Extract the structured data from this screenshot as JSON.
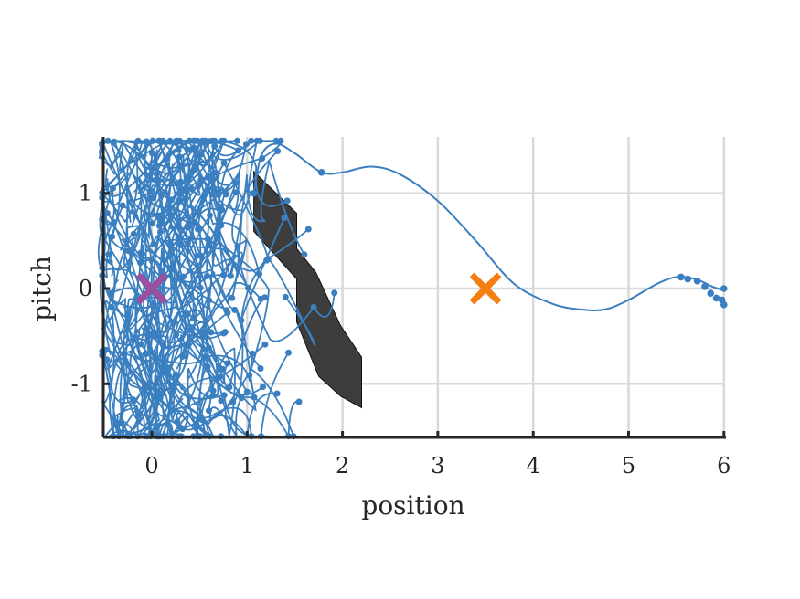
{
  "chart_data": {
    "type": "line",
    "title": "",
    "xlabel": "position",
    "ylabel": "pitch",
    "xlim": [
      -0.52,
      6.02
    ],
    "ylim": [
      -1.58,
      1.58
    ],
    "x_ticks": [
      0,
      1,
      2,
      3,
      4,
      5,
      6
    ],
    "x_tick_labels": [
      "0",
      "1",
      "2",
      "3",
      "4",
      "5",
      "6"
    ],
    "y_ticks": [
      -1,
      0,
      1
    ],
    "y_tick_labels": [
      "-1",
      "0",
      "1"
    ],
    "grid": true,
    "colors": {
      "trajectory": "#3a7fbf",
      "obstacle": "#333333",
      "start_marker": "#9b4fa0",
      "goal_marker": "#f47f11",
      "axis": "#262626",
      "grid": "#d9d9d9"
    },
    "obstacle": {
      "vertices": [
        [
          1.07,
          1.23
        ],
        [
          1.52,
          0.79
        ],
        [
          1.52,
          0.42
        ],
        [
          1.72,
          0.17
        ],
        [
          1.98,
          -0.39
        ],
        [
          2.2,
          -0.72
        ],
        [
          2.2,
          -1.25
        ],
        [
          1.98,
          -1.13
        ],
        [
          1.75,
          -0.92
        ],
        [
          1.52,
          -0.35
        ],
        [
          1.52,
          0.1
        ],
        [
          1.07,
          0.6
        ]
      ]
    },
    "start_marker": {
      "x": 0.0,
      "y": 0.0
    },
    "goal_marker": {
      "x": 3.5,
      "y": 0.0
    },
    "main_path": {
      "x": [
        1.07,
        1.15,
        1.3,
        1.5,
        1.78,
        2.0,
        2.3,
        2.6,
        3.0,
        3.4,
        3.8,
        4.2,
        4.5,
        4.75,
        5.0,
        5.3,
        5.5,
        5.7,
        5.88,
        6.0
      ],
      "y": [
        1.0,
        1.4,
        1.52,
        1.42,
        1.22,
        1.22,
        1.28,
        1.2,
        0.92,
        0.5,
        0.05,
        -0.16,
        -0.22,
        -0.22,
        -0.12,
        0.05,
        0.12,
        0.1,
        0.02,
        -0.02
      ],
      "nodes": [
        [
          1.07,
          1.0
        ],
        [
          1.78,
          1.22
        ],
        [
          5.55,
          0.12
        ]
      ]
    },
    "rollouts_note": ""
  }
}
